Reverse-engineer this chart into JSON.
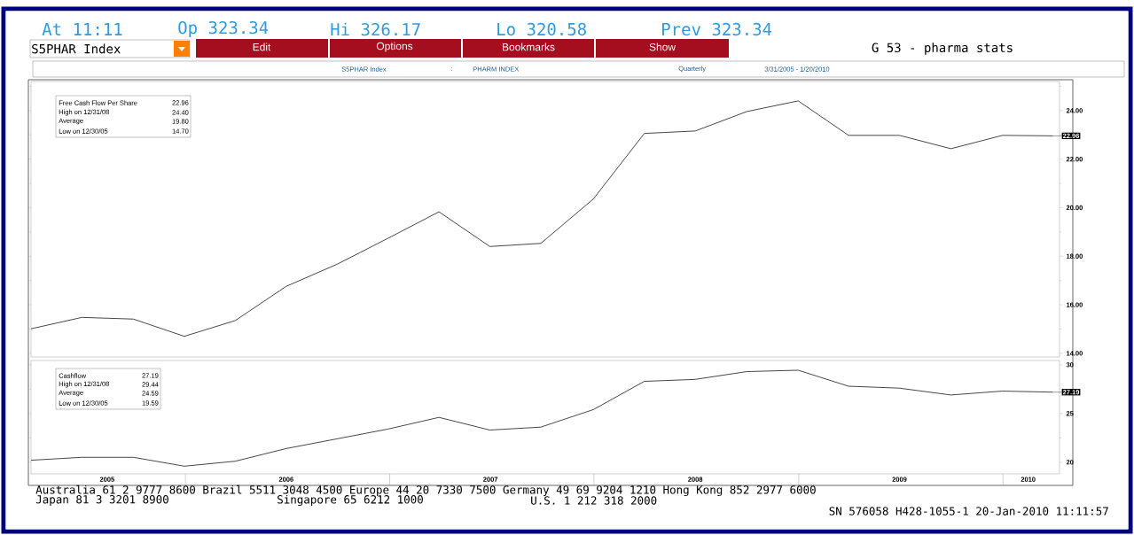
{
  "chart_data": [
    {
      "type": "line",
      "title": "G 53 - pharma stats",
      "x": [
        "2005-03-31",
        "2005-06-30",
        "2005-09-30",
        "2005-12-30",
        "2006-03-31",
        "2006-06-30",
        "2006-09-29",
        "2006-12-29",
        "2007-03-30",
        "2007-06-29",
        "2007-09-28",
        "2007-12-31",
        "2008-03-31",
        "2008-06-30",
        "2008-09-30",
        "2008-12-31",
        "2009-03-31",
        "2009-06-30",
        "2009-09-30",
        "2009-12-31",
        "2010-03-31"
      ],
      "values": [
        15.01,
        15.48,
        15.41,
        14.7,
        15.35,
        16.76,
        17.67,
        18.74,
        19.83,
        18.4,
        18.53,
        20.36,
        23.06,
        23.16,
        23.96,
        24.4,
        22.98,
        22.98,
        22.43,
        22.98,
        22.96
      ],
      "color": "#333333",
      "xlim": [
        "2005-03-31",
        "2010-04-12"
      ],
      "ylim": [
        13.85,
        25.2
      ],
      "yticks": [
        {
          "value": 14,
          "label": "14.00"
        },
        {
          "value": 15,
          "label": null
        },
        {
          "value": 16,
          "label": "16.00"
        },
        {
          "value": 17,
          "label": null
        },
        {
          "value": 18,
          "label": "18.00"
        },
        {
          "value": 19,
          "label": null
        },
        {
          "value": 20,
          "label": "20.00"
        },
        {
          "value": 21,
          "label": null
        },
        {
          "value": 22,
          "label": "22.00"
        },
        {
          "value": 23,
          "label": null
        },
        {
          "value": 24,
          "label": "24.00"
        },
        {
          "value": 25,
          "label": null
        }
      ],
      "tick_labels": "y",
      "annotations": [
        "At 11:11",
        "Op 323.34",
        "Hi 326.17",
        "Lo 320.58",
        "Prev 323.34",
        "S5PHAR Index",
        "Edit",
        "Options",
        "Bookmarks",
        "Show",
        "S5PHAR Index",
        ":",
        "PHARM INDEX",
        "Quarterly",
        "3/31/2005 - 1/20/2010",
        "Free Cash Flow Per Share",
        "22.96",
        "High on  12/31/08",
        "24.40",
        "Average",
        "19.80",
        "Low on  12/30/05",
        "14.70",
        {
          "text": "22.96",
          "x": "2010-03-31",
          "y": 22.96
        }
      ]
    },
    {
      "type": "line",
      "x": [
        "2005-03-31",
        "2005-06-30",
        "2005-09-30",
        "2005-12-30",
        "2006-03-31",
        "2006-06-30",
        "2006-09-29",
        "2006-12-29",
        "2007-03-30",
        "2007-06-29",
        "2007-09-28",
        "2007-12-31",
        "2008-03-31",
        "2008-06-30",
        "2008-09-30",
        "2008-12-31",
        "2009-03-31",
        "2009-06-30",
        "2009-09-30",
        "2009-12-31",
        "2010-03-31"
      ],
      "values": [
        20.2,
        20.5,
        20.5,
        19.59,
        20.1,
        21.4,
        22.4,
        23.4,
        24.6,
        23.3,
        23.6,
        25.4,
        28.3,
        28.5,
        29.3,
        29.44,
        27.8,
        27.6,
        26.9,
        27.3,
        27.19
      ],
      "color": "#333333",
      "xlim": [
        "2005-03-31",
        "2010-04-12"
      ],
      "ylim": [
        18.8,
        30.44
      ],
      "xticks": [
        {
          "value": "2005-08-14",
          "label": "2005"
        },
        {
          "value": "2006-01-01",
          "label": null
        },
        {
          "value": "2006-06-30",
          "label": "2006"
        },
        {
          "value": "2007-01-01",
          "label": null
        },
        {
          "value": "2007-06-30",
          "label": "2007"
        },
        {
          "value": "2008-01-01",
          "label": null
        },
        {
          "value": "2008-06-30",
          "label": "2008"
        },
        {
          "value": "2009-01-01",
          "label": null
        },
        {
          "value": "2009-06-30",
          "label": "2009"
        },
        {
          "value": "2010-01-01",
          "label": null
        },
        {
          "value": "2010-02-15",
          "label": "2010"
        }
      ],
      "yticks": [
        20,
        {
          "value": 22.5,
          "label": null
        },
        25,
        {
          "value": 27.5,
          "label": null
        },
        30
      ],
      "annotations": [
        "Cashflow",
        "27.19",
        "High on  12/31/08",
        "29.44",
        "Average",
        "24.59",
        "Low on  12/30/05",
        "19.59",
        {
          "text": "27.19",
          "x": "2010-03-31",
          "y": 27.19
        },
        "Australia 61 2 9777 8600 Brazil 5511 3048 4500 Europe 44 20 7330 7500 Germany 49 69 9204 1210 Hong Kong 852 2977 6000",
        "Japan 81 3 3201 8900",
        "Singapore 65 6212 1000",
        "U.S. 1 212 318 2000",
        "SN 576058 H428-1055-1 20-Jan-2010 11:11:57"
      ]
    }
  ]
}
